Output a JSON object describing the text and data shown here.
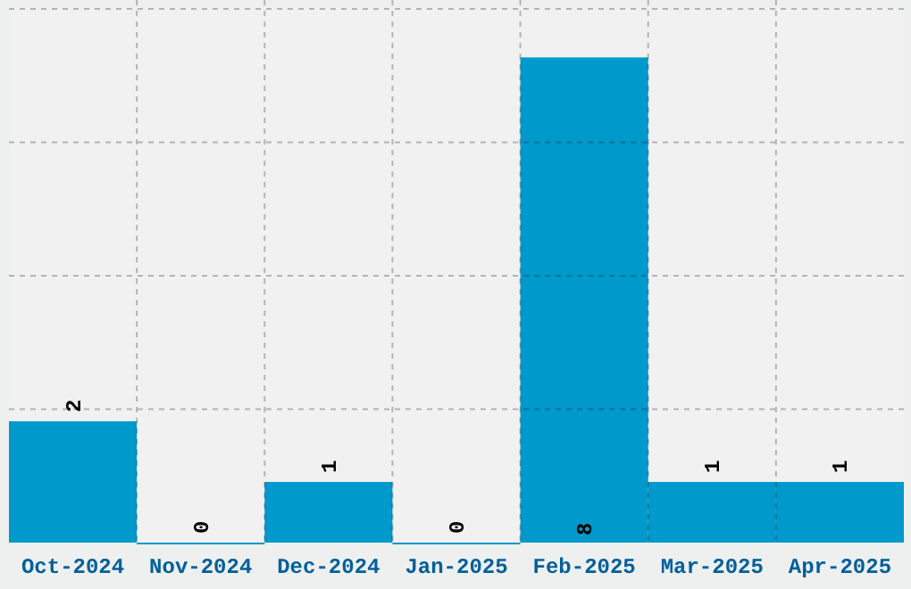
{
  "chart_data": {
    "type": "bar",
    "categories": [
      "Oct-2024",
      "Nov-2024",
      "Dec-2024",
      "Jan-2025",
      "Feb-2025",
      "Mar-2025",
      "Apr-2025"
    ],
    "values": [
      2,
      0,
      1,
      0,
      8,
      1,
      1
    ],
    "color": "#0099cc",
    "ylim": [
      0,
      8.8
    ],
    "yticks": [
      {
        "value": 2.2,
        "label": null
      },
      {
        "value": 4.4,
        "label": null
      },
      {
        "value": 6.6,
        "label": null
      },
      {
        "value": 8.8,
        "label": null
      }
    ],
    "tick_labels": "x",
    "grid": true,
    "data_labels": true
  }
}
